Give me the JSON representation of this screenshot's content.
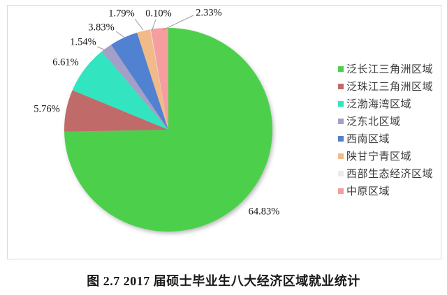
{
  "caption": "图 2.7  2017 届硕士毕业生八大经济区域就业统计",
  "chart_data": {
    "type": "pie",
    "title": "图 2.7  2017 届硕士毕业生八大经济区域就业统计",
    "legend_position": "right",
    "start_angle_deg": 0,
    "direction": "clockwise",
    "values_sum_percent": 86.79,
    "note_normalized": "slice angles are value/sum of shown values",
    "slices": [
      {
        "name": "泛长江三角洲区域",
        "value": 64.83,
        "label": "64.83%",
        "color": "#4cd04c"
      },
      {
        "name": "泛珠江三角洲区域",
        "value": 5.76,
        "label": "5.76%",
        "color": "#c16a6a"
      },
      {
        "name": "泛渤海湾区域",
        "value": 6.61,
        "label": "6.61%",
        "color": "#33e4c0"
      },
      {
        "name": "泛东北区域",
        "value": 1.54,
        "label": "1.54%",
        "color": "#a49fc9"
      },
      {
        "name": "西南区域",
        "value": 3.83,
        "label": "3.83%",
        "color": "#5181d1"
      },
      {
        "name": "陕甘宁青区域",
        "value": 1.79,
        "label": "1.79%",
        "color": "#f1ba88"
      },
      {
        "name": "西部生态经济区域",
        "value": 0.1,
        "label": "0.10%",
        "color": "#e9ebf3"
      },
      {
        "name": "中原区域",
        "value": 2.33,
        "label": "2.33%",
        "color": "#f59d9f"
      }
    ],
    "colors": {
      "frame_border": "#d9d9d9",
      "leader_line": "#9b9b9b",
      "label_text": "#141414",
      "legend_text": "#3b3b3b"
    }
  }
}
